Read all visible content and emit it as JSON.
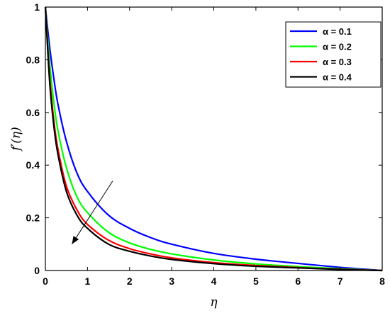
{
  "chart_data": {
    "type": "line",
    "xlabel": "η",
    "ylabel": "f′(η)",
    "xlim": [
      0,
      8
    ],
    "ylim": [
      0,
      1
    ],
    "x_ticks": [
      "0",
      "1",
      "2",
      "3",
      "4",
      "5",
      "6",
      "7",
      "8"
    ],
    "y_ticks": [
      "0",
      "0.2",
      "0.4",
      "0.6",
      "0.8",
      "1"
    ],
    "grid": false,
    "legend_position": "top-right",
    "x": [
      0,
      0.1,
      0.2,
      0.3,
      0.5,
      0.75,
      1,
      1.5,
      2,
      2.5,
      3,
      4,
      5,
      6,
      7,
      8
    ],
    "series": [
      {
        "name": "α = 0.1",
        "color": "#0000ff",
        "values": [
          1,
          0.85,
          0.73,
          0.63,
          0.49,
          0.37,
          0.3,
          0.21,
          0.16,
          0.125,
          0.1,
          0.065,
          0.043,
          0.027,
          0.012,
          0
        ]
      },
      {
        "name": "α = 0.2",
        "color": "#00ff00",
        "values": [
          1,
          0.79,
          0.64,
          0.53,
          0.39,
          0.28,
          0.22,
          0.145,
          0.105,
          0.08,
          0.063,
          0.04,
          0.025,
          0.015,
          0.007,
          0
        ]
      },
      {
        "name": "α = 0.3",
        "color": "#ff0000",
        "values": [
          1,
          0.74,
          0.57,
          0.46,
          0.32,
          0.23,
          0.175,
          0.115,
          0.083,
          0.063,
          0.048,
          0.03,
          0.019,
          0.011,
          0.005,
          0
        ]
      },
      {
        "name": "α = 0.4",
        "color": "#000000",
        "values": [
          1,
          0.72,
          0.55,
          0.44,
          0.3,
          0.21,
          0.16,
          0.1,
          0.073,
          0.055,
          0.042,
          0.026,
          0.016,
          0.01,
          0.004,
          0
        ]
      }
    ],
    "annotations": [
      {
        "type": "arrow",
        "from": [
          1.6,
          0.34
        ],
        "to": [
          0.63,
          0.1
        ]
      }
    ]
  }
}
